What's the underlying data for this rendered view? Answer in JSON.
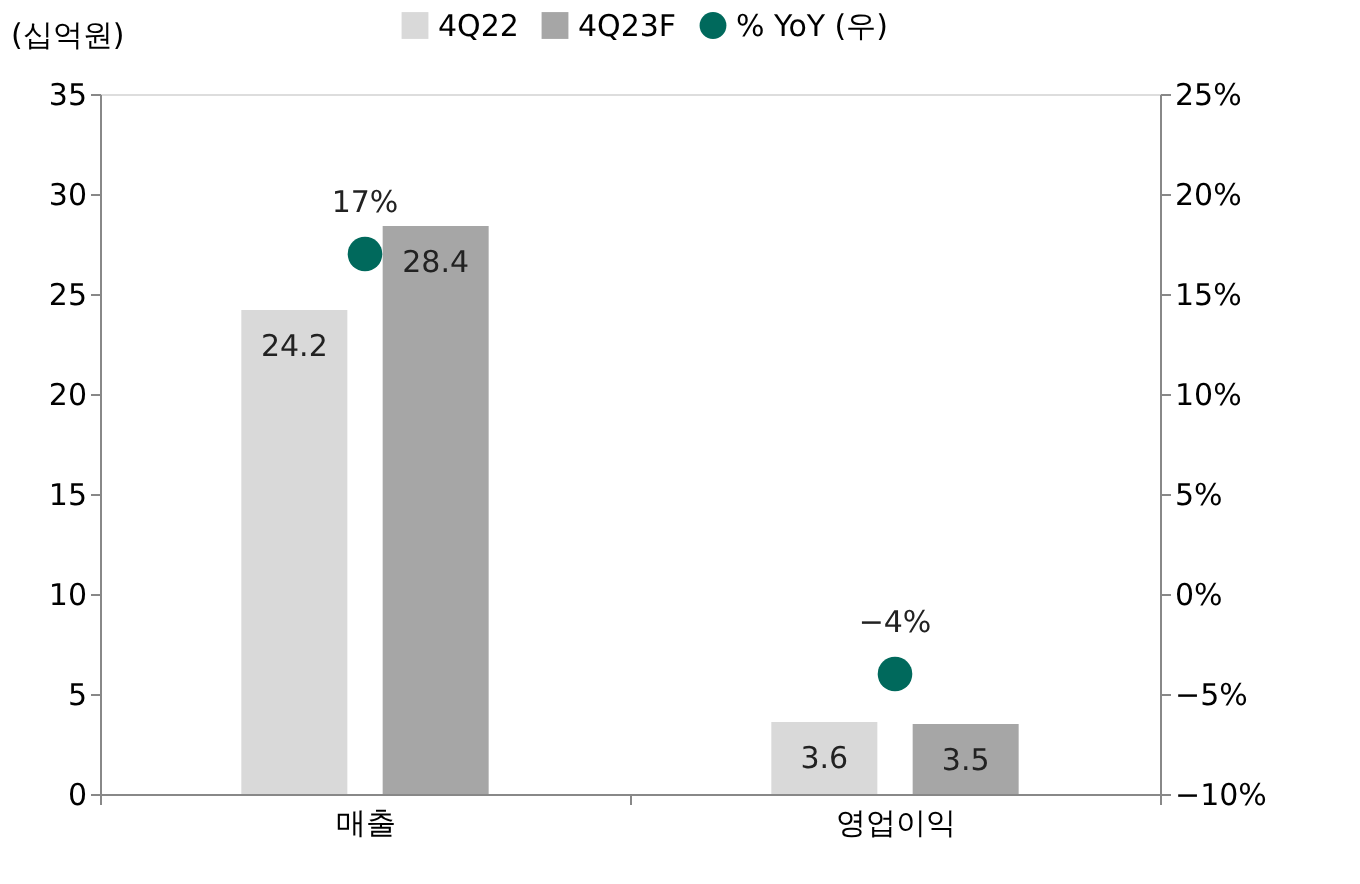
{
  "chart_data": {
    "type": "bar",
    "ylabel": "(십억원)",
    "categories": [
      "매출",
      "영업이익"
    ],
    "series": [
      {
        "name": "4Q22",
        "color": "#d9d9d9",
        "values": [
          24.2,
          3.6
        ],
        "value_labels": [
          "24.2",
          "3.6"
        ]
      },
      {
        "name": "4Q23F",
        "color": "#a6a6a6",
        "values": [
          28.4,
          3.5
        ],
        "value_labels": [
          "28.4",
          "3.5"
        ]
      },
      {
        "name": "% YoY (우)",
        "type": "scatter",
        "axis": "y2",
        "color": "#00695c",
        "values": [
          17,
          -4
        ],
        "value_labels": [
          "17%",
          "−4%"
        ]
      }
    ],
    "ylim": [
      0,
      35
    ],
    "yticks": [
      0,
      5,
      10,
      15,
      20,
      25,
      30,
      35
    ],
    "y2lim": [
      -10,
      25
    ],
    "y2ticks": [
      {
        "value": -10,
        "label": "−10%"
      },
      {
        "value": -5,
        "label": "−5%"
      },
      {
        "value": 0,
        "label": "0%"
      },
      {
        "value": 5,
        "label": "5%"
      },
      {
        "value": 10,
        "label": "10%"
      },
      {
        "value": 15,
        "label": "15%"
      },
      {
        "value": 20,
        "label": "20%"
      },
      {
        "value": 25,
        "label": "25%"
      }
    ],
    "grid": false,
    "legend": "top",
    "marker": "circle"
  }
}
